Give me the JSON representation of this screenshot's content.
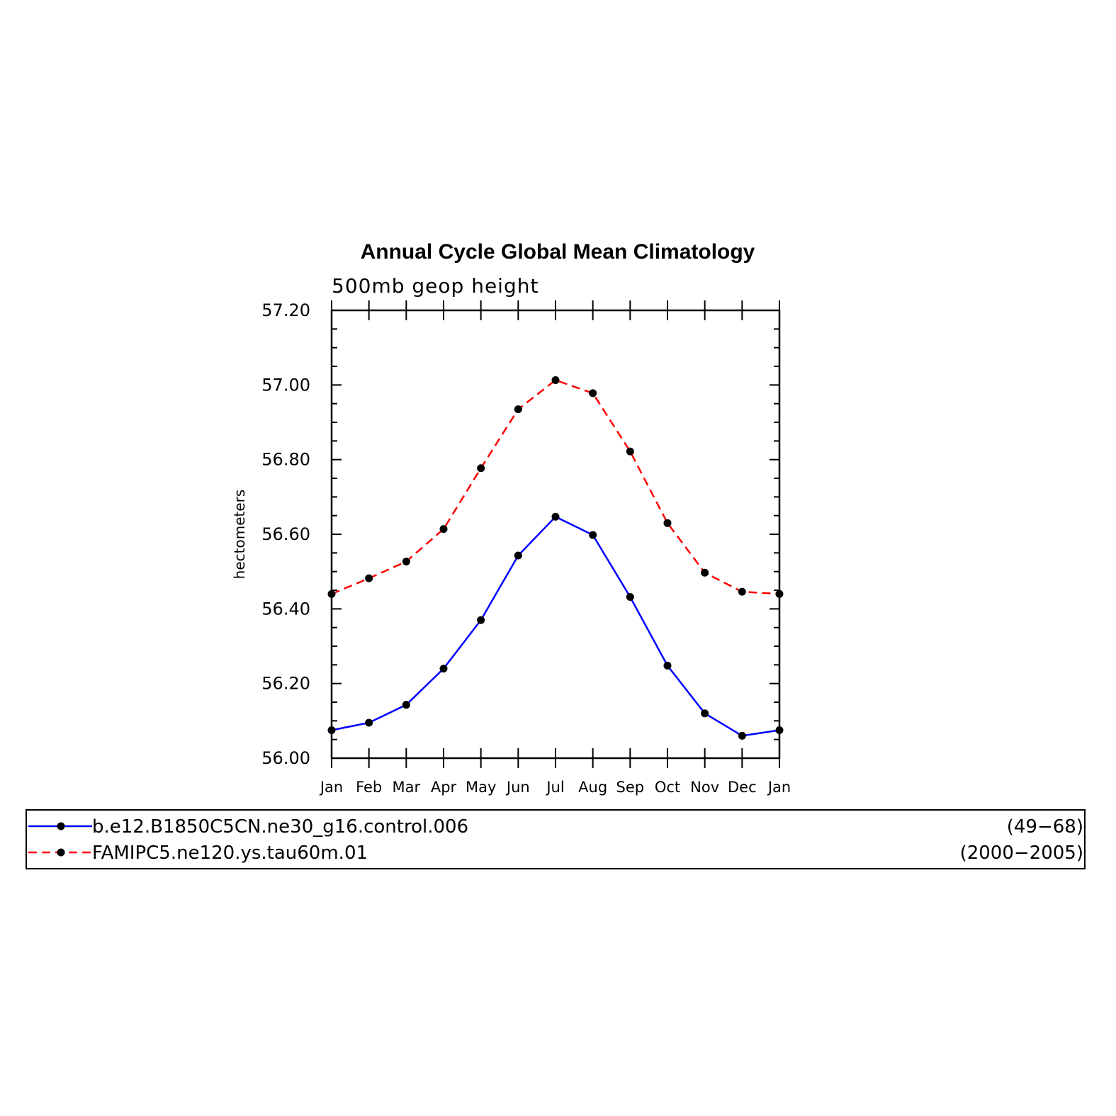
{
  "chart_data": {
    "type": "line",
    "title": "Annual Cycle Global Mean Climatology",
    "subtitle": "500mb geop height",
    "xlabel": "",
    "ylabel": "hectometers",
    "categories": [
      "Jan",
      "Feb",
      "Mar",
      "Apr",
      "May",
      "Jun",
      "Jul",
      "Aug",
      "Sep",
      "Oct",
      "Nov",
      "Dec",
      "Jan"
    ],
    "ylim": [
      56.0,
      57.2
    ],
    "yticks": [
      "56.00",
      "56.20",
      "56.40",
      "56.60",
      "56.80",
      "57.00",
      "57.20"
    ],
    "grid": false,
    "legend_position": "bottom",
    "series": [
      {
        "name": "b.e12.B1850C5CN.ne30_g16.control.006",
        "years": "(49−68)",
        "color": "#0000ff",
        "line_style": "solid",
        "values": [
          56.075,
          56.095,
          56.143,
          56.24,
          56.37,
          56.543,
          56.647,
          56.598,
          56.432,
          56.248,
          56.12,
          56.06,
          56.075
        ]
      },
      {
        "name": "FAMIPC5.ne120.ys.tau60m.01",
        "years": "(2000−2005)",
        "color": "#ff0000",
        "line_style": "dashed",
        "values": [
          56.44,
          56.482,
          56.527,
          56.614,
          56.777,
          56.935,
          57.013,
          56.978,
          56.822,
          56.63,
          56.497,
          56.446,
          56.44
        ]
      }
    ]
  }
}
